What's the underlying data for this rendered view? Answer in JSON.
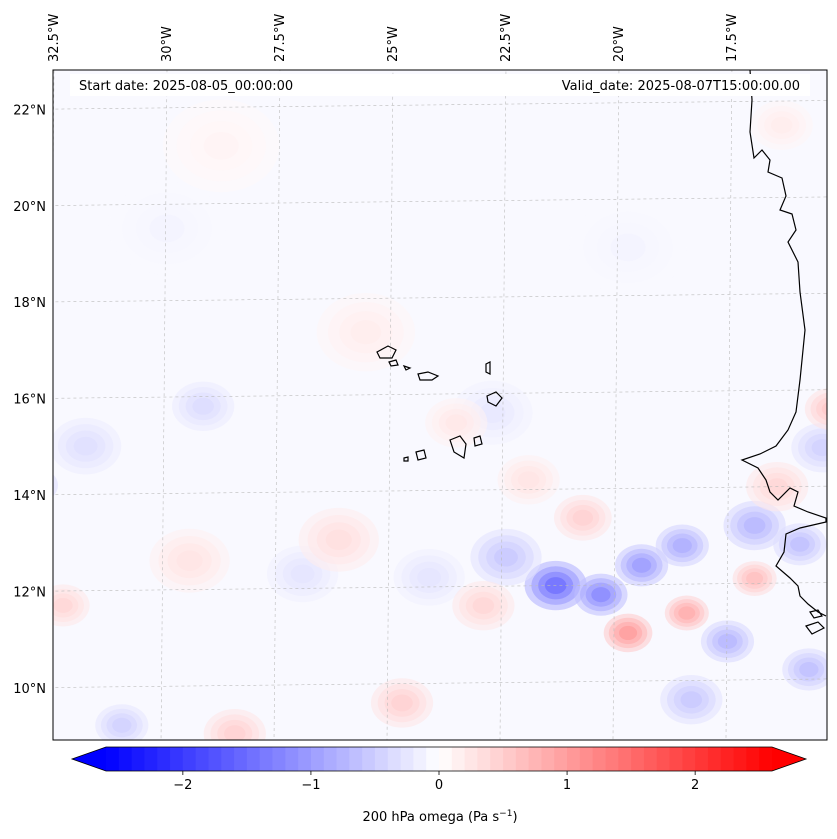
{
  "header": {
    "start_date": "Start date: 2025-08-05_00:00:00",
    "valid_date": "Valid_date: 2025-08-07T15:00:00.00"
  },
  "map": {
    "lon_range": [
      -33,
      -15
    ],
    "lat_range": [
      8.8,
      22.8
    ],
    "lon_ticks": [
      {
        "value": -32.5,
        "label": "32.5°W"
      },
      {
        "value": -30,
        "label": "30°W"
      },
      {
        "value": -27.5,
        "label": "27.5°W"
      },
      {
        "value": -25,
        "label": "25°W"
      },
      {
        "value": -22.5,
        "label": "22.5°W"
      },
      {
        "value": -20,
        "label": "20°W"
      },
      {
        "value": -17.5,
        "label": "17.5°W"
      }
    ],
    "lat_ticks": [
      {
        "value": 22,
        "label": "22°N"
      },
      {
        "value": 20,
        "label": "20°N"
      },
      {
        "value": 18,
        "label": "18°N"
      },
      {
        "value": 16,
        "label": "16°N"
      },
      {
        "value": 14,
        "label": "14°N"
      },
      {
        "value": 12,
        "label": "12°N"
      },
      {
        "value": 10,
        "label": "10°N"
      }
    ]
  },
  "colorbar": {
    "range": [
      -2.6,
      2.6
    ],
    "ticks": [
      {
        "value": -2,
        "label": "−2"
      },
      {
        "value": -1,
        "label": "−1"
      },
      {
        "value": 0,
        "label": "0"
      },
      {
        "value": 1,
        "label": "1"
      },
      {
        "value": 2,
        "label": "2"
      }
    ],
    "label_main": "200 hPa omega (Pa s",
    "label_exp": "−1",
    "label_close": ")",
    "negative_color": "#0000ff",
    "positive_color": "#ff0000"
  },
  "field": {
    "blobs": [
      {
        "lon": -21.4,
        "lat": 12.0,
        "v": -1.6,
        "r": 0.6
      },
      {
        "lon": -20.4,
        "lat": 11.8,
        "v": -1.3,
        "r": 0.5
      },
      {
        "lon": -19.5,
        "lat": 12.4,
        "v": -1.1,
        "r": 0.5
      },
      {
        "lon": -18.6,
        "lat": 12.8,
        "v": -0.9,
        "r": 0.5
      },
      {
        "lon": -17.0,
        "lat": 13.2,
        "v": -0.8,
        "r": 0.6
      },
      {
        "lon": -16.0,
        "lat": 12.8,
        "v": -0.7,
        "r": 0.5
      },
      {
        "lon": -22.5,
        "lat": 12.6,
        "v": -0.6,
        "r": 0.7
      },
      {
        "lon": -17.6,
        "lat": 10.8,
        "v": -0.8,
        "r": 0.5
      },
      {
        "lon": -15.8,
        "lat": 10.2,
        "v": -0.7,
        "r": 0.5
      },
      {
        "lon": -18.4,
        "lat": 9.6,
        "v": -0.6,
        "r": 0.6
      },
      {
        "lon": -32.9,
        "lat": 14.2,
        "v": -0.7,
        "r": 0.4
      },
      {
        "lon": -29.2,
        "lat": 15.8,
        "v": -0.4,
        "r": 0.6
      },
      {
        "lon": -31.8,
        "lat": 15.0,
        "v": -0.35,
        "r": 0.7
      },
      {
        "lon": -31.0,
        "lat": 9.2,
        "v": -0.5,
        "r": 0.5
      },
      {
        "lon": -27.0,
        "lat": 12.3,
        "v": -0.3,
        "r": 0.7
      },
      {
        "lon": -24.2,
        "lat": 12.2,
        "v": -0.3,
        "r": 0.7
      },
      {
        "lon": -22.8,
        "lat": 15.6,
        "v": -0.25,
        "r": 0.8
      },
      {
        "lon": -19.8,
        "lat": 19.0,
        "v": -0.12,
        "r": 1.2
      },
      {
        "lon": -30.0,
        "lat": 19.5,
        "v": -0.12,
        "r": 1.2
      },
      {
        "lon": -15.5,
        "lat": 14.8,
        "v": -0.5,
        "r": 0.6
      },
      {
        "lon": -19.8,
        "lat": 11.0,
        "v": 1.1,
        "r": 0.45
      },
      {
        "lon": -18.5,
        "lat": 11.4,
        "v": 0.9,
        "r": 0.4
      },
      {
        "lon": -20.8,
        "lat": 13.4,
        "v": 0.5,
        "r": 0.55
      },
      {
        "lon": -17.0,
        "lat": 12.1,
        "v": 0.7,
        "r": 0.4
      },
      {
        "lon": -16.5,
        "lat": 14.0,
        "v": 0.45,
        "r": 0.6
      },
      {
        "lon": -15.3,
        "lat": 15.6,
        "v": 0.6,
        "r": 0.5
      },
      {
        "lon": -23.0,
        "lat": 11.6,
        "v": 0.45,
        "r": 0.6
      },
      {
        "lon": -24.8,
        "lat": 9.6,
        "v": 0.5,
        "r": 0.6
      },
      {
        "lon": -28.5,
        "lat": 9.0,
        "v": 0.5,
        "r": 0.6
      },
      {
        "lon": -32.3,
        "lat": 11.7,
        "v": 0.45,
        "r": 0.5
      },
      {
        "lon": -26.2,
        "lat": 13.0,
        "v": 0.35,
        "r": 0.8
      },
      {
        "lon": -29.5,
        "lat": 12.6,
        "v": 0.3,
        "r": 0.8
      },
      {
        "lon": -25.6,
        "lat": 17.3,
        "v": 0.2,
        "r": 1.0
      },
      {
        "lon": -23.6,
        "lat": 15.4,
        "v": 0.25,
        "r": 0.6
      },
      {
        "lon": -16.4,
        "lat": 21.5,
        "v": 0.2,
        "r": 0.6
      },
      {
        "lon": -28.8,
        "lat": 21.2,
        "v": 0.12,
        "r": 1.2
      },
      {
        "lon": -22.0,
        "lat": 14.2,
        "v": 0.3,
        "r": 0.6
      }
    ]
  }
}
